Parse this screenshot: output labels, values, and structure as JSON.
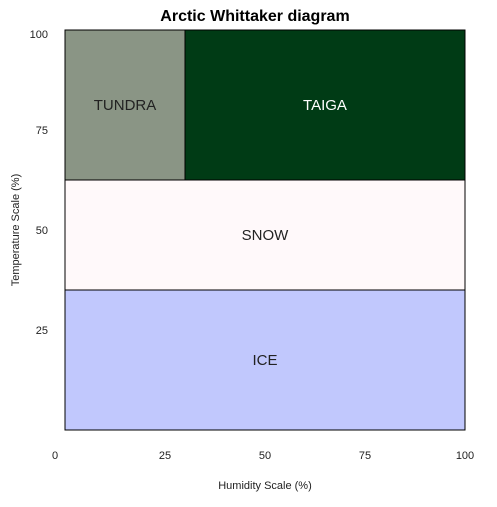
{
  "chart_data": {
    "type": "heatmap",
    "title": "Arctic Whittaker diagram",
    "xlabel": "Humidity Scale (%)",
    "ylabel": "Temperature Scale (%)",
    "xlim": [
      0,
      100
    ],
    "ylim": [
      0,
      100
    ],
    "x_ticks": [
      0,
      25,
      50,
      75,
      100
    ],
    "y_ticks": [
      25,
      50,
      75,
      100
    ],
    "grid": false,
    "regions": [
      {
        "label": "TUNDRA",
        "x": [
          0,
          30
        ],
        "y": [
          62.5,
          100
        ],
        "color": "#8a9585",
        "text_color": "#222222"
      },
      {
        "label": "TAIGA",
        "x": [
          30,
          100
        ],
        "y": [
          62.5,
          100
        ],
        "color": "#003b15",
        "text_color": "#ffffff"
      },
      {
        "label": "SNOW",
        "x": [
          0,
          100
        ],
        "y": [
          35,
          62.5
        ],
        "color": "#fff9fa",
        "text_color": "#222222"
      },
      {
        "label": "ICE",
        "x": [
          0,
          100
        ],
        "y": [
          0,
          35
        ],
        "color": "#c1c8fd",
        "text_color": "#222222"
      }
    ]
  }
}
